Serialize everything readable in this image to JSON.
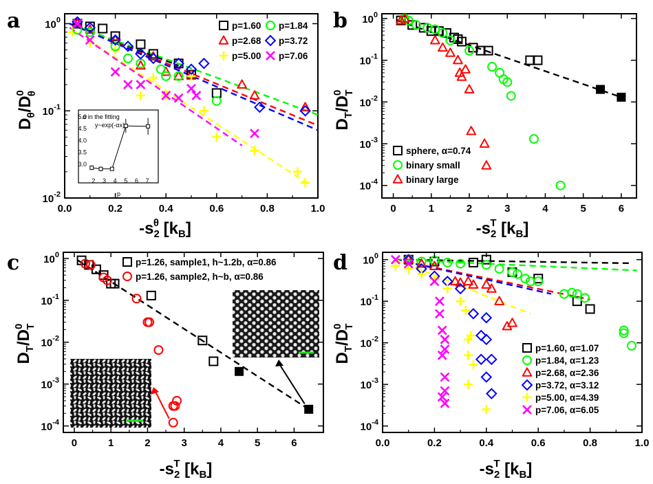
{
  "figure": {
    "panel_labels": [
      "a",
      "b",
      "c",
      "d"
    ]
  },
  "chart_data": [
    {
      "panel": "a",
      "type": "scatter",
      "yscale": "log",
      "xlabel": "-s₂ᶿ [kʙ]",
      "ylabel": "Dθ/Dθ⁰",
      "xlabel_parts": {
        "pre": "-s",
        "sub": "2",
        "sup": "θ",
        "post": " [k",
        "sub2": "B",
        "end": "]"
      },
      "ylabel_parts": {
        "main": "D",
        "sub": "θ",
        "mid": "/D",
        "sup": "0",
        "sub2": "θ"
      },
      "xlim": [
        0.0,
        1.0
      ],
      "ylim": [
        0.01,
        1.3
      ],
      "xticks": [
        0.0,
        0.2,
        0.4,
        0.6,
        0.8,
        1.0
      ],
      "xtick_labels": [
        "0.0",
        "0.2",
        "0.4",
        "0.6",
        "0.8",
        "1.0"
      ],
      "yticks": [
        0.01,
        0.1,
        1
      ],
      "ytick_labels": [
        {
          "m": "10",
          "e": "-2"
        },
        {
          "m": "10",
          "e": "-1"
        },
        {
          "m": "10",
          "e": "0"
        }
      ],
      "legend": {
        "position": "top-right",
        "columns": 2
      },
      "series": [
        {
          "name": "p=1.60",
          "marker": "square",
          "color": "#000000",
          "x": [
            0.05,
            0.1,
            0.15,
            0.2,
            0.3,
            0.35,
            0.45,
            0.5,
            0.6
          ],
          "y": [
            1.0,
            0.93,
            0.88,
            0.72,
            0.58,
            0.45,
            0.35,
            0.26,
            0.16
          ],
          "fit": {
            "x": [
              0.02,
              0.45
            ],
            "y": [
              1.0,
              0.33
            ]
          }
        },
        {
          "name": "p=2.68",
          "marker": "triangle",
          "color": "#ff0000",
          "x": [
            0.05,
            0.1,
            0.2,
            0.3,
            0.35,
            0.4,
            0.45,
            0.5,
            0.7,
            0.75,
            0.95
          ],
          "y": [
            1.0,
            0.85,
            0.65,
            0.33,
            0.42,
            0.28,
            0.25,
            0.26,
            0.2,
            0.15,
            0.11
          ],
          "fit": {
            "x": [
              0.02,
              1.0
            ],
            "y": [
              1.0,
              0.068
            ]
          }
        },
        {
          "name": "p=5.00",
          "marker": "plus",
          "color": "#ffff00",
          "x": [
            0.03,
            0.1,
            0.2,
            0.3,
            0.35,
            0.4,
            0.5,
            0.55,
            0.6,
            0.75,
            0.92,
            0.95
          ],
          "y": [
            0.8,
            0.6,
            0.5,
            0.15,
            0.24,
            0.15,
            0.25,
            0.1,
            0.05,
            0.035,
            0.02,
            0.015
          ],
          "fit": {
            "x": [
              0.02,
              0.97
            ],
            "y": [
              0.9,
              0.014
            ]
          }
        },
        {
          "name": "p=1.84",
          "marker": "circle",
          "color": "#00ff00",
          "x": [
            0.05,
            0.1,
            0.2,
            0.25,
            0.3,
            0.38,
            0.4,
            0.45,
            0.6
          ],
          "y": [
            0.85,
            0.8,
            0.55,
            0.4,
            0.35,
            0.3,
            0.25,
            0.25,
            0.13
          ],
          "fit": {
            "x": [
              0.02,
              1.0
            ],
            "y": [
              1.0,
              0.09
            ]
          }
        },
        {
          "name": "p=3.72",
          "marker": "diamond",
          "color": "#0000ff",
          "x": [
            0.05,
            0.1,
            0.2,
            0.25,
            0.3,
            0.35,
            0.45,
            0.5,
            0.55,
            0.77,
            0.95
          ],
          "y": [
            1.05,
            0.9,
            0.65,
            0.55,
            0.45,
            0.4,
            0.35,
            0.3,
            0.35,
            0.11,
            0.1
          ],
          "fit": {
            "x": [
              0.02,
              1.0
            ],
            "y": [
              1.0,
              0.06
            ]
          }
        },
        {
          "name": "p=7.06",
          "marker": "cross",
          "color": "#ff00ff",
          "x": [
            0.05,
            0.1,
            0.2,
            0.25,
            0.3,
            0.4,
            0.45,
            0.5,
            0.52,
            0.75
          ],
          "y": [
            1.0,
            0.65,
            0.28,
            0.2,
            0.2,
            0.15,
            0.14,
            0.18,
            0.15,
            0.055
          ],
          "fit": {
            "x": [
              0.02,
              0.7
            ],
            "y": [
              0.9,
              0.04
            ]
          }
        }
      ],
      "inset": {
        "title_lines": [
          "α in the fitting",
          "y~exp(-αx)"
        ],
        "xlabel": "p",
        "xlim": [
          1.5,
          7.5
        ],
        "ylim": [
          2.5,
          5.0
        ],
        "xticks": [
          2,
          3,
          4,
          5,
          6,
          7
        ],
        "xtick_labels": [
          "2",
          "3",
          "4",
          "5",
          "6",
          "7"
        ],
        "yticks": [
          3.0,
          3.5,
          4.0,
          4.5,
          5.0
        ],
        "ytick_labels": [
          "3.0",
          "3.5",
          "4.0",
          "4.5",
          "5.0"
        ],
        "x": [
          1.84,
          2.68,
          3.72,
          5.0,
          7.06
        ],
        "y": [
          2.85,
          2.8,
          2.8,
          4.62,
          4.6
        ],
        "yerr": [
          0.1,
          0.1,
          0.06,
          0.3,
          0.35
        ]
      }
    },
    {
      "panel": "b",
      "type": "scatter",
      "yscale": "log",
      "xlabel_parts": {
        "pre": "-s",
        "sub": "2",
        "sup": "T",
        "post": " [k",
        "sub2": "B",
        "end": "]"
      },
      "ylabel_parts": {
        "main": "D",
        "sub": "T",
        "mid": "/D",
        "sup": "0",
        "sub2": "T"
      },
      "xlim": [
        -0.3,
        6.4
      ],
      "ylim": [
        5e-05,
        1.3
      ],
      "xticks": [
        0,
        1,
        2,
        3,
        4,
        5,
        6
      ],
      "xtick_labels": [
        "0",
        "1",
        "2",
        "3",
        "4",
        "5",
        "6"
      ],
      "yticks": [
        0.0001,
        0.001,
        0.01,
        0.1,
        1
      ],
      "ytick_labels": [
        {
          "m": "10",
          "e": "-4"
        },
        {
          "m": "10",
          "e": "-3"
        },
        {
          "m": "10",
          "e": "-2"
        },
        {
          "m": "10",
          "e": "-1"
        },
        {
          "m": "10",
          "e": "0"
        }
      ],
      "legend": {
        "position": "bottom-left",
        "columns": 1
      },
      "series": [
        {
          "name": "sphere, α=0.74",
          "marker": "square",
          "color": "#000000",
          "x": [
            0.2,
            0.5,
            0.8,
            1.0,
            1.2,
            1.4,
            1.6,
            1.7,
            1.8,
            2.1,
            2.3,
            2.5,
            3.6,
            3.8
          ],
          "y": [
            0.9,
            0.7,
            0.6,
            0.5,
            0.5,
            0.45,
            0.35,
            0.32,
            0.28,
            0.2,
            0.17,
            0.17,
            0.1,
            0.1
          ],
          "fit": {
            "x": [
              0.1,
              6.0
            ],
            "y": [
              0.9,
              0.013
            ]
          }
        },
        {
          "name": "binary small",
          "marker": "circle",
          "color": "#00ff00",
          "x": [
            0.3,
            0.4,
            0.6,
            0.9,
            1.1,
            1.3,
            1.5,
            2.0,
            2.6,
            2.8,
            2.9,
            3.0,
            3.1,
            3.7,
            4.4
          ],
          "y": [
            1.0,
            0.9,
            0.7,
            0.6,
            0.55,
            0.45,
            0.3,
            0.17,
            0.07,
            0.05,
            0.035,
            0.03,
            0.014,
            0.0013,
            0.0001
          ],
          "fit": null
        },
        {
          "name": "binary large",
          "marker": "triangle",
          "color": "#ff0000",
          "x": [
            0.2,
            0.3,
            1.1,
            1.3,
            1.5,
            1.7,
            1.75,
            1.8,
            1.9,
            2.0,
            2.05,
            2.4,
            2.45
          ],
          "y": [
            0.9,
            1.0,
            0.3,
            0.2,
            0.15,
            0.1,
            0.05,
            0.04,
            0.06,
            0.02,
            0.002,
            0.001,
            0.0003
          ],
          "fit": null
        },
        {
          "name": "",
          "marker": "square-filled",
          "color": "#000000",
          "x": [
            5.45,
            6.0
          ],
          "y": [
            0.02,
            0.013
          ],
          "fit": null
        }
      ]
    },
    {
      "panel": "c",
      "type": "scatter",
      "yscale": "log",
      "xlabel_parts": {
        "pre": "-s",
        "sub": "2",
        "sup": "T",
        "post": " [k",
        "sub2": "B",
        "end": "]"
      },
      "ylabel_parts": {
        "main": "D",
        "sub": "T",
        "mid": "/D",
        "sup": "0",
        "sub2": "T"
      },
      "xlim": [
        -0.3,
        6.8
      ],
      "ylim": [
        7e-05,
        1.4
      ],
      "xticks": [
        0,
        1,
        2,
        3,
        4,
        5,
        6
      ],
      "xtick_labels": [
        "0",
        "1",
        "2",
        "3",
        "4",
        "5",
        "6"
      ],
      "yticks": [
        0.0001,
        0.001,
        0.01,
        0.1,
        1
      ],
      "ytick_labels": [
        {
          "m": "10",
          "e": "-4"
        },
        {
          "m": "10",
          "e": "-3"
        },
        {
          "m": "10",
          "e": "-2"
        },
        {
          "m": "10",
          "e": "-1"
        },
        {
          "m": "10",
          "e": "0"
        }
      ],
      "legend": {
        "position": "top-right",
        "columns": 1
      },
      "series": [
        {
          "name": "p=1.26, sample1, h~1.2b, α=0.86",
          "marker": "square",
          "color": "#000000",
          "x": [
            0.2,
            0.4,
            0.6,
            0.8,
            1.0,
            1.1,
            2.1,
            3.5,
            3.8
          ],
          "y": [
            0.9,
            0.7,
            0.55,
            0.4,
            0.25,
            0.25,
            0.13,
            0.011,
            0.0035
          ],
          "fit": {
            "x": [
              0.1,
              6.4
            ],
            "y": [
              0.9,
              0.00025
            ]
          }
        },
        {
          "name": "p=1.26, sample2, h~b, α=0.86",
          "marker": "circle",
          "color": "#ff0000",
          "x": [
            0.3,
            0.45,
            0.8,
            0.9,
            1.7,
            2.0,
            2.05,
            2.3,
            2.7,
            2.75,
            2.8,
            2.7
          ],
          "y": [
            0.75,
            0.7,
            0.35,
            0.3,
            0.11,
            0.03,
            0.03,
            0.0065,
            0.0003,
            0.0003,
            0.0004,
            0.00012
          ],
          "fit": null
        },
        {
          "name": "",
          "marker": "square-filled",
          "color": "#000000",
          "x": [
            4.5,
            6.4
          ],
          "y": [
            0.002,
            0.00025
          ],
          "fit": null
        }
      ]
    },
    {
      "panel": "d",
      "type": "scatter",
      "yscale": "log",
      "xlabel_parts": {
        "pre": "-s",
        "sub": "2",
        "sup": "T",
        "post": " [k",
        "sub2": "B",
        "end": "]"
      },
      "ylabel_parts": {
        "main": "D",
        "sub": "T",
        "mid": "/D",
        "sup": "0",
        "sub2": "T"
      },
      "xlim": [
        0.0,
        1.0
      ],
      "ylim": [
        7e-05,
        1.5
      ],
      "xticks": [
        0.0,
        0.2,
        0.4,
        0.6,
        0.8,
        1.0
      ],
      "xtick_labels": [
        "0.0",
        "0.2",
        "0.4",
        "0.6",
        "0.8",
        "1.0"
      ],
      "yticks": [
        0.0001,
        0.001,
        0.01,
        0.1,
        1
      ],
      "ytick_labels": [
        {
          "m": "10",
          "e": "-4"
        },
        {
          "m": "10",
          "e": "-3"
        },
        {
          "m": "10",
          "e": "-2"
        },
        {
          "m": "10",
          "e": "-1"
        },
        {
          "m": "10",
          "e": "0"
        }
      ],
      "legend": {
        "position": "bottom-right",
        "columns": 1
      },
      "series": [
        {
          "name": "p=1.60, α=1.07",
          "marker": "square",
          "color": "#000000",
          "x": [
            0.1,
            0.2,
            0.35,
            0.4,
            0.5,
            0.6,
            0.75,
            0.8
          ],
          "y": [
            1.0,
            0.9,
            0.85,
            1.0,
            0.5,
            0.35,
            0.1,
            0.065
          ],
          "fit": {
            "x": [
              0.05,
              0.95
            ],
            "y": [
              1.0,
              0.82
            ]
          }
        },
        {
          "name": "p=1.84, α=1.23",
          "marker": "circle",
          "color": "#00ff00",
          "x": [
            0.1,
            0.15,
            0.2,
            0.25,
            0.3,
            0.4,
            0.45,
            0.5,
            0.52,
            0.55,
            0.57,
            0.6,
            0.7,
            0.73,
            0.75,
            0.78,
            0.93,
            0.93,
            0.96
          ],
          "y": [
            1.0,
            0.9,
            0.95,
            0.85,
            0.8,
            0.75,
            0.6,
            0.5,
            0.45,
            0.35,
            0.3,
            0.3,
            0.15,
            0.16,
            0.15,
            0.12,
            0.02,
            0.017,
            0.0085
          ],
          "fit": {
            "x": [
              0.05,
              0.98
            ],
            "y": [
              1.0,
              0.55
            ]
          }
        },
        {
          "name": "p=2.68, α=2.36",
          "marker": "triangle",
          "color": "#ff0000",
          "x": [
            0.1,
            0.15,
            0.2,
            0.28,
            0.3,
            0.33,
            0.35,
            0.4,
            0.42,
            0.45,
            0.48,
            0.5
          ],
          "y": [
            1.0,
            0.8,
            0.7,
            0.3,
            0.28,
            0.3,
            0.25,
            0.25,
            0.2,
            0.1,
            0.025,
            0.03
          ],
          "fit": {
            "x": [
              0.05,
              0.8
            ],
            "y": [
              1.0,
              0.11
            ]
          }
        },
        {
          "name": "p=3.72, α=3.12",
          "marker": "diamond",
          "color": "#0000ff",
          "x": [
            0.1,
            0.15,
            0.2,
            0.25,
            0.3,
            0.35,
            0.4,
            0.38,
            0.4,
            0.42,
            0.38,
            0.4,
            0.42
          ],
          "y": [
            1.0,
            0.6,
            0.4,
            0.3,
            0.2,
            0.05,
            0.04,
            0.015,
            0.012,
            0.004,
            0.004,
            0.0015,
            0.0006
          ],
          "fit": {
            "x": [
              0.05,
              0.65
            ],
            "y": [
              1.0,
              0.15
            ]
          }
        },
        {
          "name": "p=5.00, α=4.39",
          "marker": "plus",
          "color": "#ffff00",
          "x": [
            0.05,
            0.1,
            0.15,
            0.2,
            0.25,
            0.3,
            0.32,
            0.33,
            0.34,
            0.33,
            0.35,
            0.33,
            0.4
          ],
          "y": [
            0.7,
            0.6,
            0.45,
            0.35,
            0.2,
            0.1,
            0.06,
            0.012,
            0.015,
            0.005,
            0.003,
            0.001,
            0.00025
          ],
          "fit": {
            "x": [
              0.05,
              0.57
            ],
            "y": [
              1.0,
              0.05
            ]
          }
        },
        {
          "name": "p=7.06, α=6.05",
          "marker": "cross",
          "color": "#ff00ff",
          "x": [
            0.05,
            0.1,
            0.2,
            0.22,
            0.22,
            0.23,
            0.24,
            0.24,
            0.23,
            0.24,
            0.24,
            0.23,
            0.24
          ],
          "y": [
            1.0,
            0.8,
            0.3,
            0.1,
            0.05,
            0.02,
            0.012,
            0.007,
            0.005,
            0.0015,
            0.0007,
            0.0005,
            0.00035
          ],
          "fit": null
        }
      ]
    },
    {
      "panel": "c-insets",
      "type": "annotation",
      "series": [
        {
          "name": "inset-upper",
          "anchor_data": {
            "x": 6.4,
            "y": 0.00025
          }
        },
        {
          "name": "inset-lower",
          "anchor_data": {
            "x": 2.7,
            "y": 0.00012
          }
        }
      ]
    }
  ]
}
